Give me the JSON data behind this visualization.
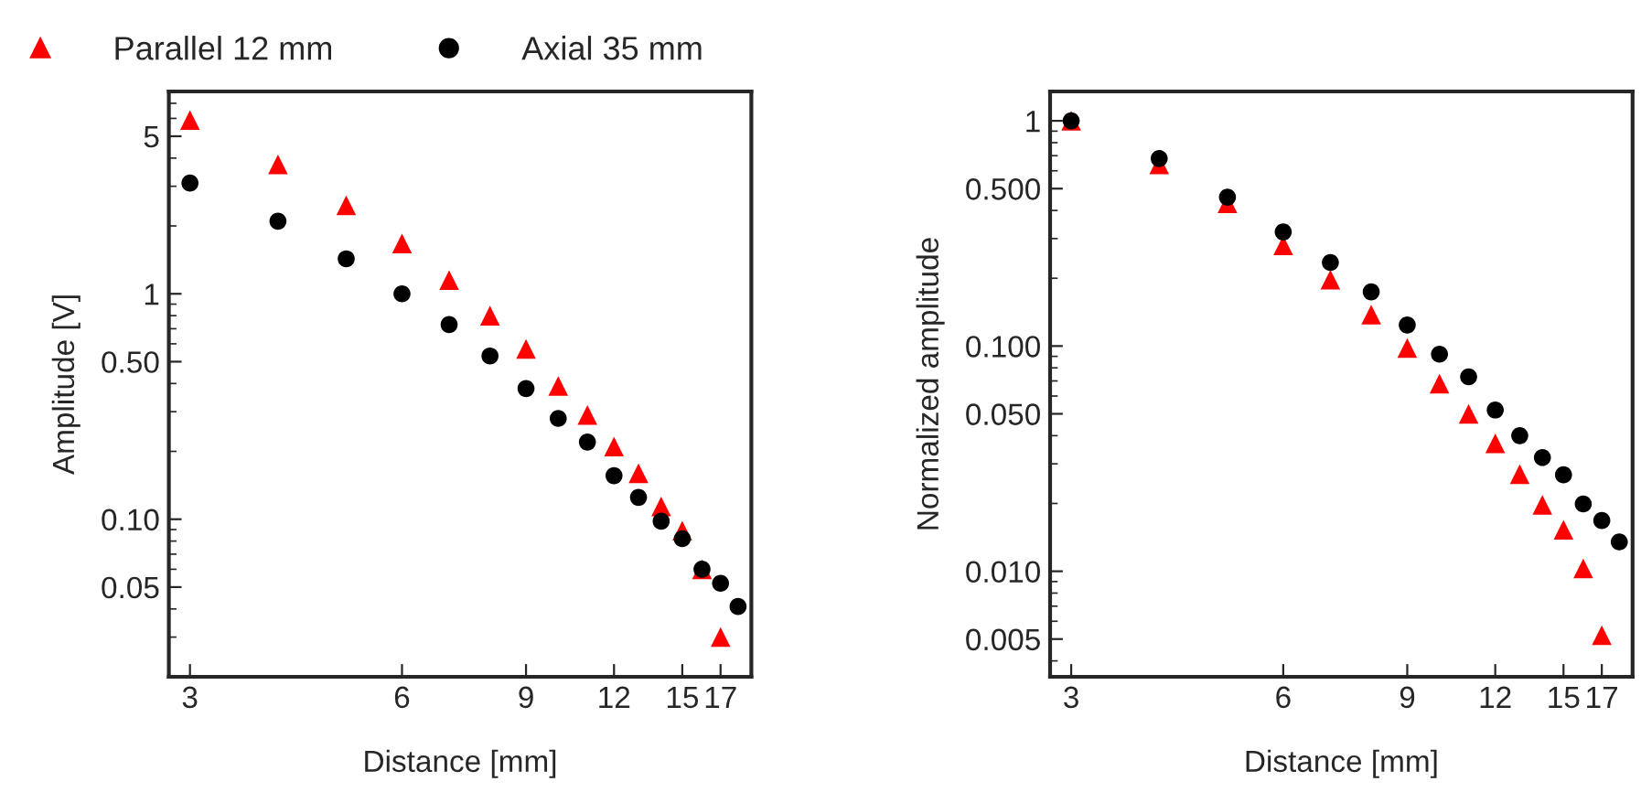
{
  "chart_data": [
    {
      "type": "scatter",
      "xlabel": "Distance [mm]",
      "ylabel": "Amplitude [V]",
      "log": "xy",
      "grid": false,
      "legend": "top left",
      "x": [
        3,
        4,
        5,
        6,
        7,
        8,
        9,
        10,
        11,
        12,
        13,
        14,
        15,
        16,
        17,
        18
      ],
      "xlim": [
        2.8,
        18.8
      ],
      "xticks": [
        3,
        6,
        9,
        12,
        15,
        17
      ],
      "ylim": [
        0.02,
        7.9
      ],
      "yticks": [
        {
          "value": 0.05,
          "label": "0.05"
        },
        {
          "value": 0.1,
          "label": "0.10"
        },
        {
          "value": 0.5,
          "label": "0.50"
        },
        1,
        5
      ],
      "series": [
        {
          "name": "Parallel 12 mm",
          "color": "#ff0000",
          "marker": "triangle",
          "values": [
            5.9,
            3.75,
            2.47,
            1.67,
            1.15,
            0.8,
            0.57,
            0.39,
            0.29,
            0.21,
            0.16,
            0.114,
            0.089,
            0.06,
            0.03,
            null
          ]
        },
        {
          "name": "Axial 35 mm",
          "color": "#000000",
          "marker": "circle",
          "values": [
            3.1,
            2.1,
            1.43,
            1.0,
            0.73,
            0.53,
            0.38,
            0.28,
            0.22,
            0.156,
            0.125,
            0.098,
            0.082,
            0.06,
            0.052,
            0.041
          ]
        }
      ]
    },
    {
      "type": "scatter",
      "xlabel": "Distance [mm]",
      "ylabel": "Normalized amplitude",
      "log": "xy",
      "grid": false,
      "x": [
        3,
        4,
        5,
        6,
        7,
        8,
        9,
        10,
        11,
        12,
        13,
        14,
        15,
        16,
        17,
        18
      ],
      "xlim": [
        2.8,
        18.8
      ],
      "xticks": [
        3,
        6,
        9,
        12,
        15,
        17
      ],
      "ylim": [
        0.0034,
        1.35
      ],
      "yticks": [
        {
          "value": 0.005,
          "label": "0.005"
        },
        {
          "value": 0.01,
          "label": "0.010"
        },
        {
          "value": 0.05,
          "label": "0.050"
        },
        {
          "value": 0.1,
          "label": "0.100"
        },
        {
          "value": 0.5,
          "label": "0.500"
        },
        1
      ],
      "series": [
        {
          "color": "#ff0000",
          "marker": "triangle",
          "values": [
            1.0,
            0.64,
            0.43,
            0.28,
            0.197,
            0.138,
            0.098,
            0.068,
            0.05,
            0.037,
            0.027,
            0.0197,
            0.0153,
            0.0103,
            0.0052,
            null
          ]
        },
        {
          "color": "#000000",
          "marker": "circle",
          "values": [
            1.0,
            0.68,
            0.458,
            0.321,
            0.235,
            0.174,
            0.124,
            0.092,
            0.073,
            0.052,
            0.04,
            0.032,
            0.0268,
            0.0199,
            0.0168,
            0.0135
          ]
        }
      ]
    }
  ]
}
